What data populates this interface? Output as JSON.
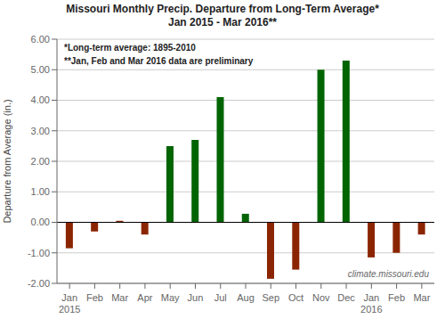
{
  "chart_data": {
    "type": "bar",
    "title": "Missouri Monthly Precip. Departure from Long-Term Average*",
    "subtitle": "Jan 2015 - Mar 2016**",
    "ylabel": "Departure from Average (in.)",
    "categories": [
      "Jan\n2015",
      "Feb",
      "Mar",
      "Apr",
      "May",
      "Jun",
      "Jul",
      "Aug",
      "Sep",
      "Oct",
      "Nov",
      "Dec",
      "Jan\n2016",
      "Feb",
      "Mar"
    ],
    "values": [
      -0.85,
      -0.3,
      0.05,
      -0.4,
      2.5,
      2.7,
      4.1,
      0.28,
      -1.85,
      -1.55,
      5.0,
      5.3,
      -1.15,
      -1.0,
      -0.4
    ],
    "colors": [
      "#8B2500",
      "#8B2500",
      "#8B2500",
      "#8B2500",
      "#006400",
      "#006400",
      "#006400",
      "#006400",
      "#8B2500",
      "#8B2500",
      "#006400",
      "#006400",
      "#8B2500",
      "#8B2500",
      "#8B2500"
    ],
    "ylim": [
      -2.0,
      6.0
    ],
    "yticks": [
      {
        "value": -2,
        "label": "-2.00"
      },
      {
        "value": -1,
        "label": "-1.00"
      },
      {
        "value": 0,
        "label": "0.00"
      },
      {
        "value": 1,
        "label": "1.00"
      },
      {
        "value": 2,
        "label": "2.00"
      },
      {
        "value": 3,
        "label": "3.00"
      },
      {
        "value": 4,
        "label": "4.00"
      },
      {
        "value": 5,
        "label": "5.00"
      },
      {
        "value": 6,
        "label": "6.00"
      }
    ],
    "grid": true,
    "annotations": [
      "*Long-term average: 1895-2010",
      "**Jan, Feb and Mar 2016 data are preliminary",
      "climate.missouri.edu"
    ]
  }
}
